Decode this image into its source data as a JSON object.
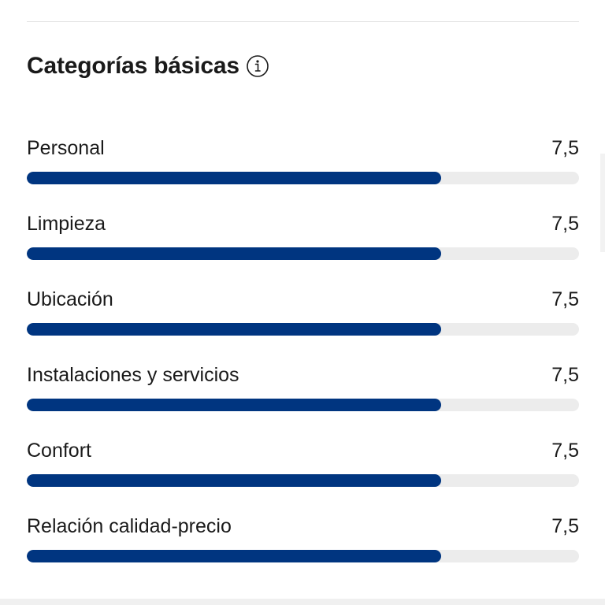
{
  "section": {
    "title": "Categorías básicas",
    "info_icon": "info-circle-icon"
  },
  "categories": [
    {
      "label": "Personal",
      "score": "7,5",
      "fraction": 0.75
    },
    {
      "label": "Limpieza",
      "score": "7,5",
      "fraction": 0.75
    },
    {
      "label": "Ubicación",
      "score": "7,5",
      "fraction": 0.75
    },
    {
      "label": "Instalaciones y servicios",
      "score": "7,5",
      "fraction": 0.75
    },
    {
      "label": "Confort",
      "score": "7,5",
      "fraction": 0.75
    },
    {
      "label": "Relación calidad-precio",
      "score": "7,5",
      "fraction": 0.75
    }
  ],
  "colors": {
    "bar_fill": "#003580",
    "bar_track": "#ececec",
    "text": "#1a1a1a"
  }
}
